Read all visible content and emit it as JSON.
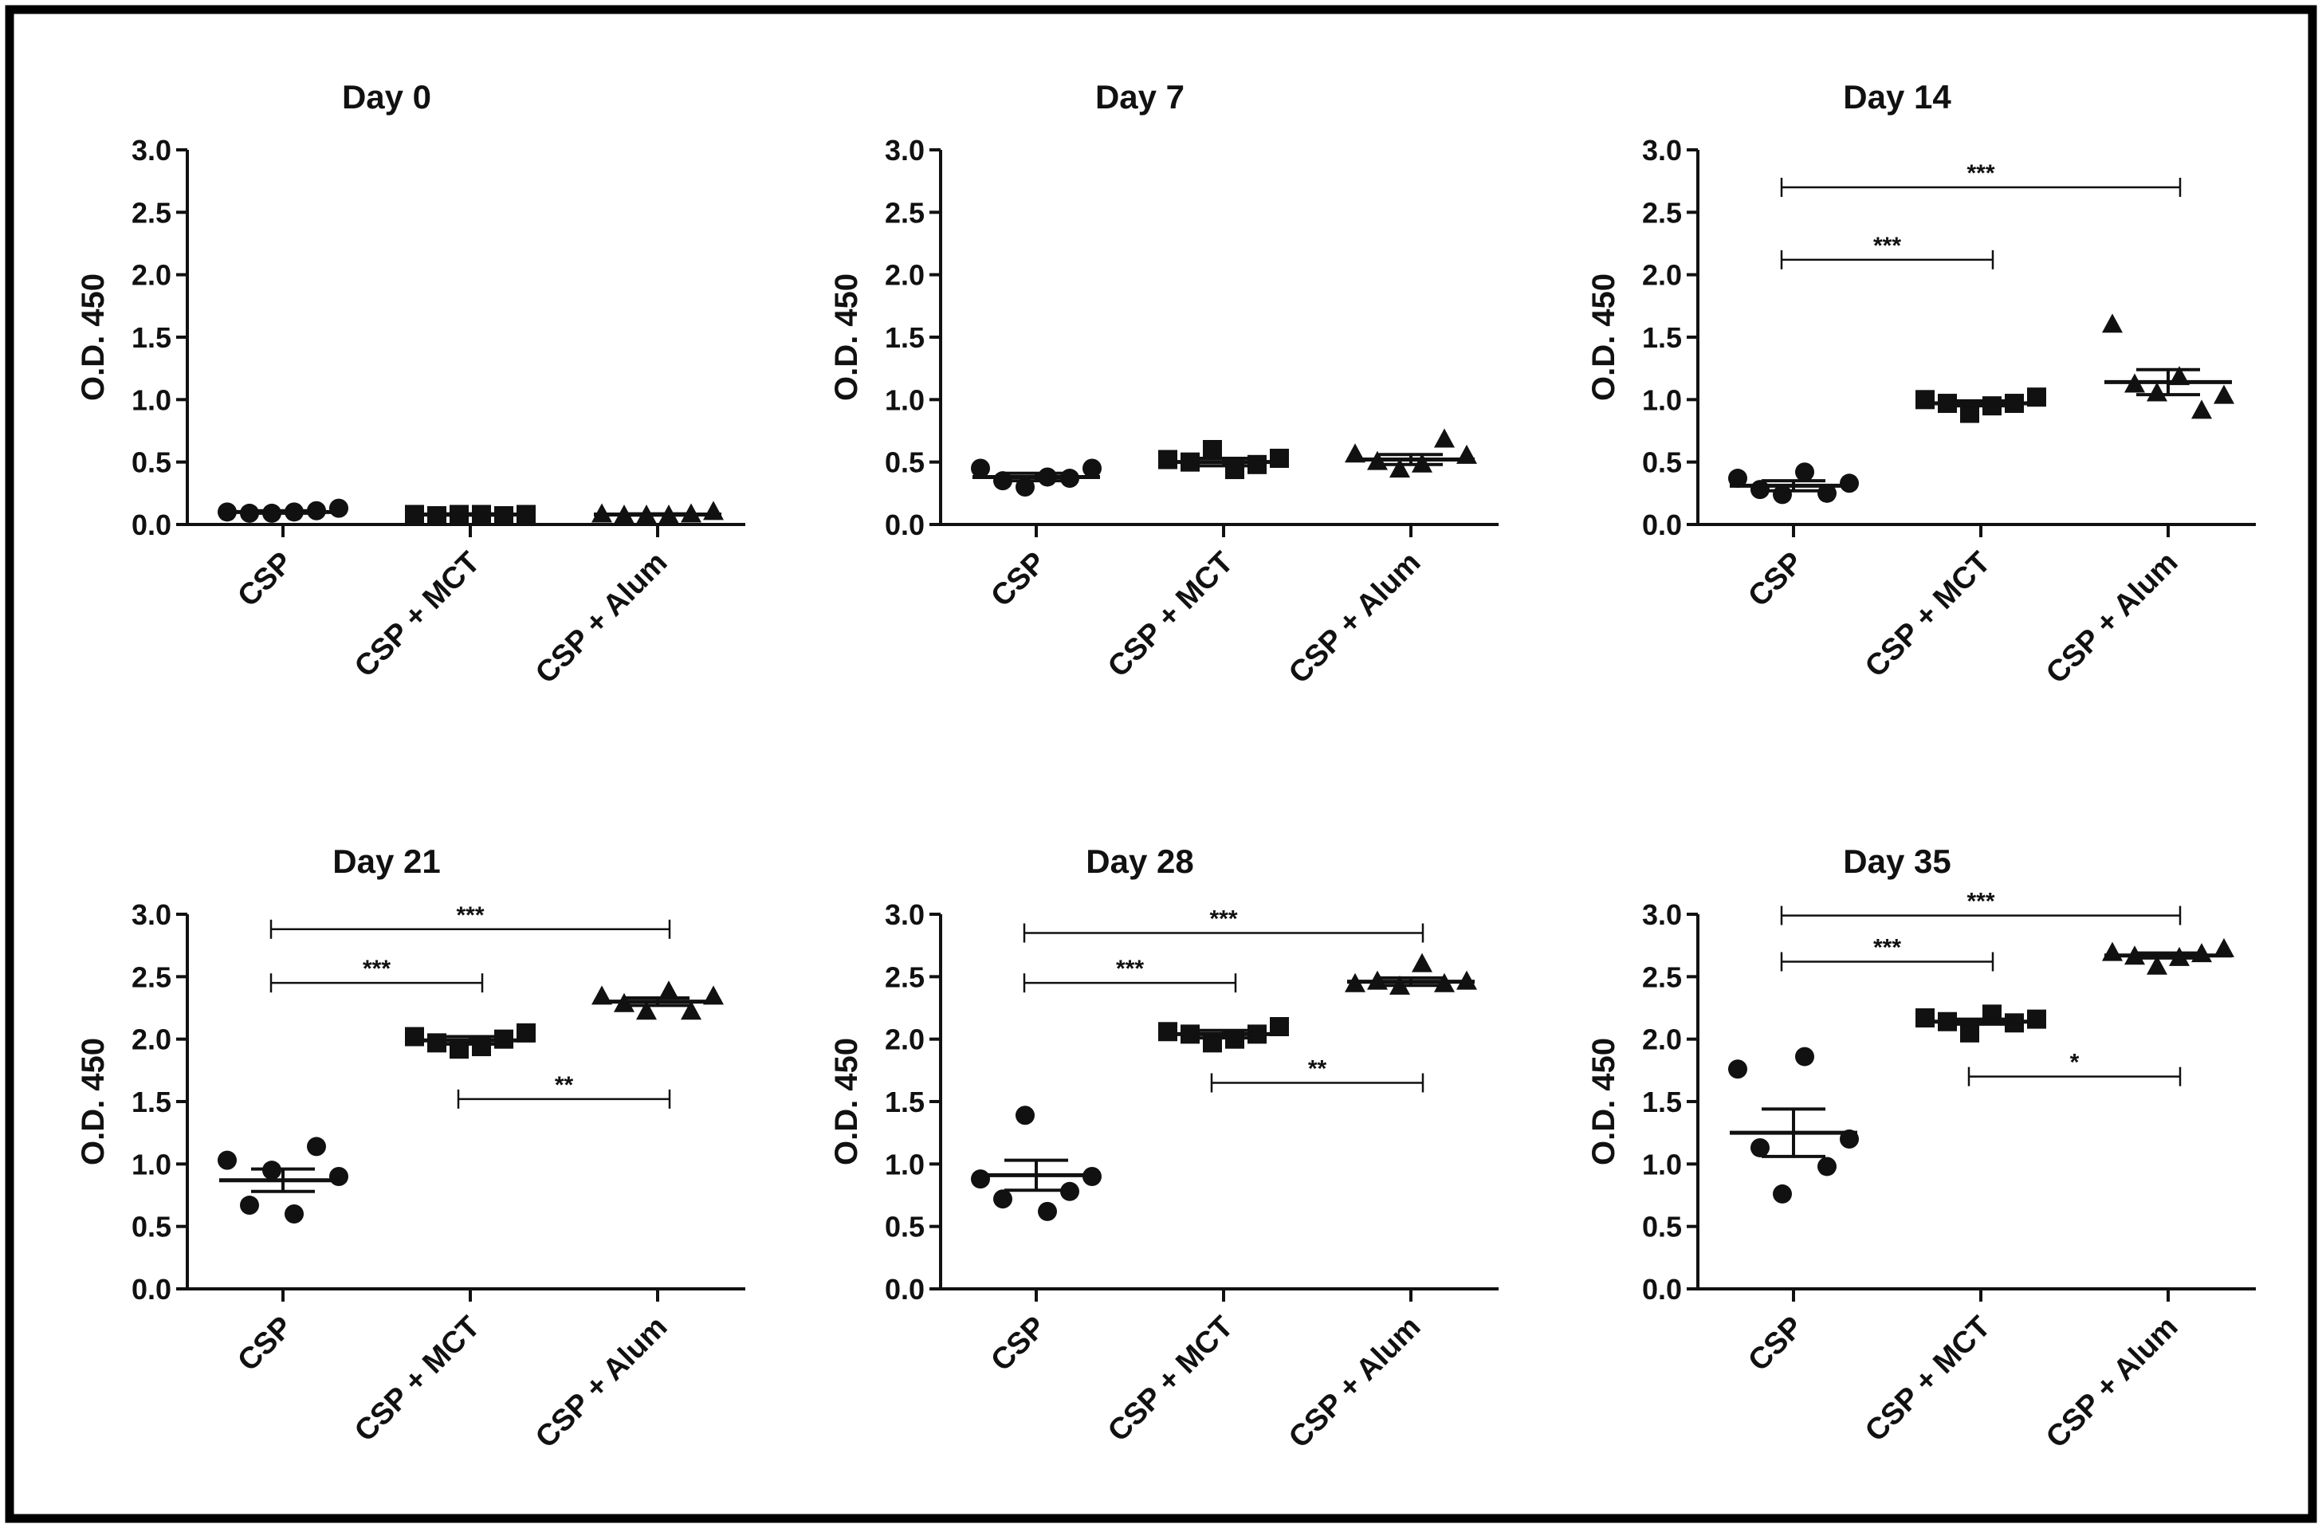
{
  "figure": {
    "border_color": "#000000",
    "ink_color": "#111111"
  },
  "chart_data": [
    {
      "type": "scatter",
      "title": "Day 0",
      "ylabel": "O.D. 450",
      "xlabel": "",
      "ylim": [
        0,
        3.0
      ],
      "yticks": [
        "0.0",
        "0.5",
        "1.0",
        "1.5",
        "2.0",
        "2.5",
        "3.0"
      ],
      "categories": [
        "CSP",
        "CSP + MCT",
        "CSP + Alum"
      ],
      "series": [
        {
          "name": "CSP",
          "marker": "circle",
          "mean": 0.1,
          "sem": 0.01,
          "values": [
            0.1,
            0.09,
            0.09,
            0.1,
            0.11,
            0.13
          ]
        },
        {
          "name": "CSP + MCT",
          "marker": "square",
          "mean": 0.08,
          "sem": 0.005,
          "values": [
            0.08,
            0.07,
            0.08,
            0.08,
            0.07,
            0.08
          ]
        },
        {
          "name": "CSP + Alum",
          "marker": "triangle",
          "mean": 0.08,
          "sem": 0.005,
          "values": [
            0.08,
            0.07,
            0.07,
            0.07,
            0.08,
            0.1
          ]
        }
      ],
      "significance": []
    },
    {
      "type": "scatter",
      "title": "Day 7",
      "ylabel": "O.D. 450",
      "xlabel": "",
      "ylim": [
        0,
        3.0
      ],
      "yticks": [
        "0.0",
        "0.5",
        "1.0",
        "1.5",
        "2.0",
        "2.5",
        "3.0"
      ],
      "categories": [
        "CSP",
        "CSP + MCT",
        "CSP + Alum"
      ],
      "series": [
        {
          "name": "CSP",
          "marker": "circle",
          "mean": 0.38,
          "sem": 0.03,
          "values": [
            0.45,
            0.35,
            0.3,
            0.38,
            0.37,
            0.45
          ]
        },
        {
          "name": "CSP + MCT",
          "marker": "square",
          "mean": 0.5,
          "sem": 0.03,
          "values": [
            0.52,
            0.5,
            0.6,
            0.44,
            0.48,
            0.53
          ]
        },
        {
          "name": "CSP + Alum",
          "marker": "triangle",
          "mean": 0.52,
          "sem": 0.04,
          "values": [
            0.56,
            0.5,
            0.44,
            0.48,
            0.68,
            0.55
          ]
        }
      ],
      "significance": []
    },
    {
      "type": "scatter",
      "title": "Day 14",
      "ylabel": "O.D. 450",
      "xlabel": "",
      "ylim": [
        0,
        3.0
      ],
      "yticks": [
        "0.0",
        "0.5",
        "1.0",
        "1.5",
        "2.0",
        "2.5",
        "3.0"
      ],
      "categories": [
        "CSP",
        "CSP + MCT",
        "CSP + Alum"
      ],
      "series": [
        {
          "name": "CSP",
          "marker": "circle",
          "mean": 0.31,
          "sem": 0.04,
          "values": [
            0.37,
            0.28,
            0.24,
            0.42,
            0.25,
            0.33
          ]
        },
        {
          "name": "CSP + MCT",
          "marker": "square",
          "mean": 0.97,
          "sem": 0.02,
          "values": [
            1.0,
            0.97,
            0.89,
            0.95,
            0.97,
            1.02
          ]
        },
        {
          "name": "CSP + Alum",
          "marker": "triangle",
          "mean": 1.14,
          "sem": 0.1,
          "values": [
            1.6,
            1.12,
            1.05,
            1.18,
            0.91,
            1.03
          ]
        }
      ],
      "significance": [
        {
          "from": 0,
          "to": 1,
          "label": "***",
          "y": 2.12
        },
        {
          "from": 0,
          "to": 2,
          "label": "***",
          "y": 2.7
        }
      ]
    },
    {
      "type": "scatter",
      "title": "Day 21",
      "ylabel": "O.D. 450",
      "xlabel": "",
      "ylim": [
        0,
        3.0
      ],
      "yticks": [
        "0.0",
        "0.5",
        "1.0",
        "1.5",
        "2.0",
        "2.5",
        "3.0"
      ],
      "categories": [
        "CSP",
        "CSP + MCT",
        "CSP + Alum"
      ],
      "series": [
        {
          "name": "CSP",
          "marker": "circle",
          "mean": 0.87,
          "sem": 0.09,
          "values": [
            1.03,
            0.67,
            0.95,
            0.6,
            1.14,
            0.9
          ]
        },
        {
          "name": "CSP + MCT",
          "marker": "square",
          "mean": 1.99,
          "sem": 0.03,
          "values": [
            2.02,
            1.97,
            1.92,
            1.94,
            2.0,
            2.05
          ]
        },
        {
          "name": "CSP + Alum",
          "marker": "triangle",
          "mean": 2.3,
          "sem": 0.03,
          "values": [
            2.34,
            2.28,
            2.22,
            2.38,
            2.22,
            2.34
          ]
        }
      ],
      "significance": [
        {
          "from": 0,
          "to": 1,
          "label": "***",
          "y": 2.45
        },
        {
          "from": 0,
          "to": 2,
          "label": "***",
          "y": 2.88
        },
        {
          "from": 1,
          "to": 2,
          "label": "**",
          "y": 1.52
        }
      ]
    },
    {
      "type": "scatter",
      "title": "Day 28",
      "ylabel": "O.D. 450",
      "xlabel": "",
      "ylim": [
        0,
        3.0
      ],
      "yticks": [
        "0.0",
        "0.5",
        "1.0",
        "1.5",
        "2.0",
        "2.5",
        "3.0"
      ],
      "categories": [
        "CSP",
        "CSP + MCT",
        "CSP + Alum"
      ],
      "series": [
        {
          "name": "CSP",
          "marker": "circle",
          "mean": 0.91,
          "sem": 0.12,
          "values": [
            0.88,
            0.72,
            1.39,
            0.62,
            0.78,
            0.9
          ]
        },
        {
          "name": "CSP + MCT",
          "marker": "square",
          "mean": 2.04,
          "sem": 0.03,
          "values": [
            2.06,
            2.04,
            1.97,
            2.0,
            2.04,
            2.1
          ]
        },
        {
          "name": "CSP + Alum",
          "marker": "triangle",
          "mean": 2.46,
          "sem": 0.03,
          "values": [
            2.44,
            2.46,
            2.42,
            2.6,
            2.44,
            2.46
          ]
        }
      ],
      "significance": [
        {
          "from": 0,
          "to": 1,
          "label": "***",
          "y": 2.45
        },
        {
          "from": 0,
          "to": 2,
          "label": "***",
          "y": 2.85
        },
        {
          "from": 1,
          "to": 2,
          "label": "**",
          "y": 1.65
        }
      ]
    },
    {
      "type": "scatter",
      "title": "Day 35",
      "ylabel": "O.D. 450",
      "xlabel": "",
      "ylim": [
        0,
        3.0
      ],
      "yticks": [
        "0.0",
        "0.5",
        "1.0",
        "1.5",
        "2.0",
        "2.5",
        "3.0"
      ],
      "categories": [
        "CSP",
        "CSP + MCT",
        "CSP + Alum"
      ],
      "series": [
        {
          "name": "CSP",
          "marker": "circle",
          "mean": 1.25,
          "sem": 0.19,
          "values": [
            1.76,
            1.13,
            0.76,
            1.86,
            0.98,
            1.2
          ]
        },
        {
          "name": "CSP + MCT",
          "marker": "square",
          "mean": 2.14,
          "sem": 0.02,
          "values": [
            2.17,
            2.14,
            2.05,
            2.2,
            2.13,
            2.16
          ]
        },
        {
          "name": "CSP + Alum",
          "marker": "triangle",
          "mean": 2.67,
          "sem": 0.02,
          "values": [
            2.69,
            2.66,
            2.58,
            2.65,
            2.68,
            2.72
          ]
        }
      ],
      "significance": [
        {
          "from": 0,
          "to": 1,
          "label": "***",
          "y": 2.62
        },
        {
          "from": 0,
          "to": 2,
          "label": "***",
          "y": 2.99
        },
        {
          "from": 1,
          "to": 2,
          "label": "*",
          "y": 1.7
        }
      ]
    }
  ]
}
